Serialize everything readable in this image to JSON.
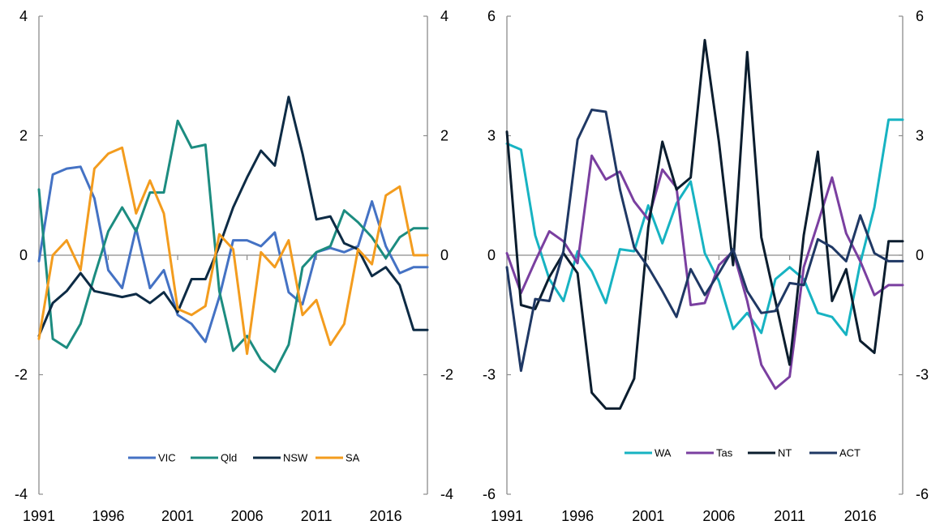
{
  "chart_data": [
    {
      "type": "line",
      "x": [
        1991,
        1992,
        1993,
        1994,
        1995,
        1996,
        1997,
        1998,
        1999,
        2000,
        2001,
        2002,
        2003,
        2004,
        2005,
        2006,
        2007,
        2008,
        2009,
        2010,
        2011,
        2012,
        2013,
        2014,
        2015,
        2016,
        2017,
        2018,
        2019
      ],
      "xticks": [
        "1991",
        "1996",
        "2001",
        "2006",
        "2011",
        "2016"
      ],
      "ylim": [
        -4,
        4
      ],
      "yticks": [
        -4,
        -2,
        0,
        2,
        4
      ],
      "ytick_labels": [
        "-4",
        "-2",
        "0",
        "2",
        "4"
      ],
      "y2ticks": [
        -4,
        -2,
        0,
        2,
        4
      ],
      "y2tick_labels": [
        "-4",
        "-2",
        "0",
        "2",
        "4"
      ],
      "legend_position": "bottom",
      "series": [
        {
          "name": "VIC",
          "color": "#4472C4",
          "values": [
            -0.1,
            1.35,
            1.45,
            1.48,
            0.95,
            -0.25,
            -0.55,
            0.45,
            -0.55,
            -0.25,
            -1.0,
            -1.15,
            -1.45,
            -0.7,
            0.25,
            0.25,
            0.15,
            0.38,
            -0.62,
            -0.82,
            0.05,
            0.12,
            0.05,
            0.15,
            0.9,
            0.15,
            -0.3,
            -0.2,
            -0.2
          ]
        },
        {
          "name": "Qld",
          "color": "#1C8C80",
          "values": [
            1.1,
            -1.4,
            -1.55,
            -1.15,
            -0.35,
            0.4,
            0.8,
            0.4,
            1.05,
            1.05,
            2.25,
            1.8,
            1.85,
            -0.6,
            -1.6,
            -1.35,
            -1.75,
            -1.95,
            -1.5,
            -0.2,
            0.05,
            0.15,
            0.75,
            0.55,
            0.3,
            -0.05,
            0.3,
            0.45,
            0.45
          ]
        },
        {
          "name": "NSW",
          "color": "#0D2B45",
          "values": [
            -1.35,
            -0.8,
            -0.6,
            -0.3,
            -0.6,
            -0.65,
            -0.7,
            -0.65,
            -0.8,
            -0.62,
            -0.95,
            -0.4,
            -0.4,
            0.15,
            0.8,
            1.3,
            1.75,
            1.5,
            2.65,
            1.7,
            0.6,
            0.65,
            0.2,
            0.1,
            -0.35,
            -0.2,
            -0.5,
            -1.25,
            -1.25
          ]
        },
        {
          "name": "SA",
          "color": "#F39C1E",
          "values": [
            -1.4,
            0.0,
            0.25,
            -0.25,
            1.45,
            1.7,
            1.8,
            0.7,
            1.25,
            0.7,
            -0.9,
            -1.0,
            -0.85,
            0.35,
            0.1,
            -1.65,
            0.05,
            -0.2,
            0.25,
            -1.0,
            -0.75,
            -1.5,
            -1.15,
            0.1,
            -0.15,
            1.0,
            1.15,
            0.0,
            0.0
          ]
        }
      ]
    },
    {
      "type": "line",
      "x": [
        1991,
        1992,
        1993,
        1994,
        1995,
        1996,
        1997,
        1998,
        1999,
        2000,
        2001,
        2002,
        2003,
        2004,
        2005,
        2006,
        2007,
        2008,
        2009,
        2010,
        2011,
        2012,
        2013,
        2014,
        2015,
        2016,
        2017,
        2018,
        2019
      ],
      "xticks": [
        "1991",
        "1996",
        "2001",
        "2006",
        "2011",
        "2016"
      ],
      "ylim": [
        -6,
        6
      ],
      "yticks": [
        -6,
        -3,
        0,
        3,
        6
      ],
      "ytick_labels": [
        "-6",
        "-3",
        "0",
        "3",
        "6"
      ],
      "y2ticks": [
        -6,
        -3,
        0,
        3,
        6
      ],
      "y2tick_labels": [
        "-6",
        "-3",
        "0",
        "3",
        "6"
      ],
      "legend_position": "bottom",
      "series": [
        {
          "name": "WA",
          "color": "#17B3C2",
          "values": [
            2.8,
            2.65,
            0.5,
            -0.6,
            -1.15,
            0.1,
            -0.4,
            -1.2,
            0.15,
            0.1,
            1.25,
            0.3,
            1.3,
            1.85,
            0.05,
            -0.65,
            -1.85,
            -1.45,
            -1.95,
            -0.6,
            -0.3,
            -0.6,
            -1.45,
            -1.55,
            -2.0,
            -0.2,
            1.2,
            3.4,
            3.4
          ]
        },
        {
          "name": "Tas",
          "color": "#7A3FA0",
          "values": [
            0.05,
            -0.95,
            -0.15,
            0.6,
            0.35,
            -0.2,
            2.5,
            1.9,
            2.1,
            1.35,
            0.9,
            2.15,
            1.7,
            -1.25,
            -1.2,
            -0.25,
            0.1,
            -1.15,
            -2.75,
            -3.35,
            -3.05,
            -0.3,
            0.8,
            1.95,
            0.55,
            -0.15,
            -1.0,
            -0.75,
            -0.75
          ]
        },
        {
          "name": "NT",
          "color": "#0B1D2E",
          "values": [
            3.1,
            -1.25,
            -1.35,
            -0.55,
            0.05,
            -0.45,
            -3.45,
            -3.85,
            -3.85,
            -3.1,
            0.7,
            2.85,
            1.65,
            1.95,
            5.4,
            2.85,
            -0.25,
            5.1,
            0.45,
            -1.15,
            -2.75,
            0.5,
            2.6,
            -1.15,
            -0.35,
            -2.15,
            -2.45,
            0.35,
            0.35
          ]
        },
        {
          "name": "ACT",
          "color": "#1F3864",
          "values": [
            -0.3,
            -2.9,
            -1.1,
            -1.15,
            0.1,
            2.9,
            3.65,
            3.6,
            1.65,
            0.2,
            -0.3,
            -0.9,
            -1.55,
            -0.35,
            -1.0,
            -0.45,
            0.15,
            -0.9,
            -1.45,
            -1.4,
            -0.7,
            -0.75,
            0.4,
            0.2,
            -0.15,
            1.0,
            0.05,
            -0.15,
            -0.15
          ]
        }
      ]
    }
  ]
}
